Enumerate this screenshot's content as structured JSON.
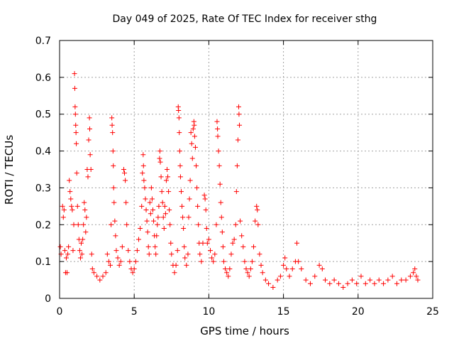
{
  "chart_data": {
    "type": "scatter",
    "title": "Day 049 of 2025, Rate Of TEC Index for receiver sthg",
    "xlabel": "GPS time / hours",
    "ylabel": "ROTI / TECUs",
    "xlim": [
      0,
      25
    ],
    "ylim": [
      0,
      0.7
    ],
    "x_ticks": [
      0,
      5,
      10,
      15,
      20,
      25
    ],
    "y_ticks": [
      0,
      0.1,
      0.2,
      0.3,
      0.4,
      0.5,
      0.6,
      0.7
    ],
    "x_tick_labels": [
      "0",
      "5",
      "10",
      "15",
      "20",
      "25"
    ],
    "y_tick_labels": [
      "0",
      "0.1",
      "0.2",
      "0.3",
      "0.4",
      "0.5",
      "0.6",
      "0.7"
    ],
    "grid": true,
    "marker": "+",
    "series": [
      {
        "name": "ROTI",
        "color": "#ff0000",
        "points": [
          [
            0.05,
            0.14
          ],
          [
            0.1,
            0.12
          ],
          [
            0.2,
            0.25
          ],
          [
            0.25,
            0.22
          ],
          [
            0.3,
            0.24
          ],
          [
            0.35,
            0.13
          ],
          [
            0.4,
            0.07
          ],
          [
            0.45,
            0.11
          ],
          [
            0.5,
            0.07
          ],
          [
            0.55,
            0.12
          ],
          [
            0.6,
            0.14
          ],
          [
            0.65,
            0.32
          ],
          [
            0.7,
            0.29
          ],
          [
            0.75,
            0.27
          ],
          [
            0.8,
            0.25
          ],
          [
            0.85,
            0.24
          ],
          [
            0.9,
            0.13
          ],
          [
            0.95,
            0.2
          ],
          [
            1.0,
            0.61
          ],
          [
            1.02,
            0.57
          ],
          [
            1.04,
            0.52
          ],
          [
            1.06,
            0.5
          ],
          [
            1.08,
            0.47
          ],
          [
            1.1,
            0.45
          ],
          [
            1.12,
            0.42
          ],
          [
            1.15,
            0.34
          ],
          [
            1.2,
            0.25
          ],
          [
            1.25,
            0.2
          ],
          [
            1.3,
            0.16
          ],
          [
            1.35,
            0.13
          ],
          [
            1.4,
            0.11
          ],
          [
            1.45,
            0.15
          ],
          [
            1.5,
            0.12
          ],
          [
            1.55,
            0.16
          ],
          [
            1.6,
            0.2
          ],
          [
            1.65,
            0.26
          ],
          [
            1.7,
            0.24
          ],
          [
            1.75,
            0.18
          ],
          [
            1.8,
            0.22
          ],
          [
            1.85,
            0.35
          ],
          [
            1.9,
            0.33
          ],
          [
            1.95,
            0.43
          ],
          [
            2.0,
            0.49
          ],
          [
            2.02,
            0.46
          ],
          [
            2.05,
            0.39
          ],
          [
            2.1,
            0.35
          ],
          [
            2.15,
            0.12
          ],
          [
            2.2,
            0.08
          ],
          [
            2.3,
            0.07
          ],
          [
            2.5,
            0.06
          ],
          [
            2.7,
            0.05
          ],
          [
            2.9,
            0.06
          ],
          [
            3.1,
            0.07
          ],
          [
            3.2,
            0.12
          ],
          [
            3.3,
            0.1
          ],
          [
            3.4,
            0.09
          ],
          [
            3.45,
            0.2
          ],
          [
            3.5,
            0.49
          ],
          [
            3.52,
            0.47
          ],
          [
            3.55,
            0.45
          ],
          [
            3.58,
            0.4
          ],
          [
            3.6,
            0.36
          ],
          [
            3.62,
            0.3
          ],
          [
            3.65,
            0.26
          ],
          [
            3.7,
            0.21
          ],
          [
            3.75,
            0.17
          ],
          [
            3.8,
            0.13
          ],
          [
            3.9,
            0.11
          ],
          [
            4.0,
            0.09
          ],
          [
            4.1,
            0.1
          ],
          [
            4.2,
            0.14
          ],
          [
            4.3,
            0.35
          ],
          [
            4.35,
            0.34
          ],
          [
            4.4,
            0.32
          ],
          [
            4.45,
            0.26
          ],
          [
            4.5,
            0.2
          ],
          [
            4.6,
            0.13
          ],
          [
            4.7,
            0.1
          ],
          [
            4.8,
            0.08
          ],
          [
            4.9,
            0.07
          ],
          [
            5.0,
            0.08
          ],
          [
            5.1,
            0.1
          ],
          [
            5.2,
            0.13
          ],
          [
            5.3,
            0.16
          ],
          [
            5.4,
            0.19
          ],
          [
            5.5,
            0.25
          ],
          [
            5.55,
            0.34
          ],
          [
            5.6,
            0.39
          ],
          [
            5.62,
            0.36
          ],
          [
            5.65,
            0.32
          ],
          [
            5.7,
            0.3
          ],
          [
            5.75,
            0.27
          ],
          [
            5.8,
            0.24
          ],
          [
            5.85,
            0.21
          ],
          [
            5.9,
            0.18
          ],
          [
            5.95,
            0.14
          ],
          [
            6.0,
            0.12
          ],
          [
            6.05,
            0.26
          ],
          [
            6.1,
            0.23
          ],
          [
            6.15,
            0.3
          ],
          [
            6.2,
            0.27
          ],
          [
            6.25,
            0.24
          ],
          [
            6.3,
            0.21
          ],
          [
            6.35,
            0.17
          ],
          [
            6.4,
            0.14
          ],
          [
            6.45,
            0.12
          ],
          [
            6.5,
            0.17
          ],
          [
            6.55,
            0.2
          ],
          [
            6.6,
            0.22
          ],
          [
            6.65,
            0.25
          ],
          [
            6.7,
            0.38
          ],
          [
            6.72,
            0.4
          ],
          [
            6.75,
            0.37
          ],
          [
            6.8,
            0.33
          ],
          [
            6.85,
            0.29
          ],
          [
            6.9,
            0.26
          ],
          [
            6.95,
            0.22
          ],
          [
            7.0,
            0.19
          ],
          [
            7.05,
            0.25
          ],
          [
            7.1,
            0.23
          ],
          [
            7.15,
            0.32
          ],
          [
            7.2,
            0.35
          ],
          [
            7.25,
            0.33
          ],
          [
            7.3,
            0.29
          ],
          [
            7.35,
            0.24
          ],
          [
            7.4,
            0.2
          ],
          [
            7.45,
            0.15
          ],
          [
            7.5,
            0.12
          ],
          [
            7.6,
            0.09
          ],
          [
            7.7,
            0.07
          ],
          [
            7.8,
            0.09
          ],
          [
            7.9,
            0.13
          ],
          [
            7.95,
            0.52
          ],
          [
            7.97,
            0.51
          ],
          [
            8.0,
            0.49
          ],
          [
            8.02,
            0.45
          ],
          [
            8.05,
            0.4
          ],
          [
            8.08,
            0.36
          ],
          [
            8.1,
            0.33
          ],
          [
            8.15,
            0.29
          ],
          [
            8.2,
            0.25
          ],
          [
            8.25,
            0.22
          ],
          [
            8.3,
            0.19
          ],
          [
            8.35,
            0.14
          ],
          [
            8.4,
            0.11
          ],
          [
            8.5,
            0.09
          ],
          [
            8.6,
            0.12
          ],
          [
            8.65,
            0.22
          ],
          [
            8.7,
            0.27
          ],
          [
            8.75,
            0.32
          ],
          [
            8.8,
            0.45
          ],
          [
            8.85,
            0.42
          ],
          [
            8.9,
            0.38
          ],
          [
            8.95,
            0.46
          ],
          [
            9.0,
            0.48
          ],
          [
            9.02,
            0.47
          ],
          [
            9.05,
            0.44
          ],
          [
            9.1,
            0.41
          ],
          [
            9.15,
            0.36
          ],
          [
            9.2,
            0.3
          ],
          [
            9.25,
            0.25
          ],
          [
            9.3,
            0.2
          ],
          [
            9.35,
            0.15
          ],
          [
            9.4,
            0.12
          ],
          [
            9.5,
            0.1
          ],
          [
            9.6,
            0.15
          ],
          [
            9.7,
            0.28
          ],
          [
            9.75,
            0.27
          ],
          [
            9.8,
            0.24
          ],
          [
            9.85,
            0.19
          ],
          [
            9.9,
            0.15
          ],
          [
            10.0,
            0.16
          ],
          [
            10.1,
            0.13
          ],
          [
            10.2,
            0.11
          ],
          [
            10.3,
            0.1
          ],
          [
            10.4,
            0.12
          ],
          [
            10.5,
            0.2
          ],
          [
            10.55,
            0.48
          ],
          [
            10.58,
            0.46
          ],
          [
            10.6,
            0.44
          ],
          [
            10.65,
            0.4
          ],
          [
            10.7,
            0.36
          ],
          [
            10.75,
            0.31
          ],
          [
            10.8,
            0.26
          ],
          [
            10.85,
            0.22
          ],
          [
            10.9,
            0.18
          ],
          [
            10.95,
            0.14
          ],
          [
            11.0,
            0.1
          ],
          [
            11.1,
            0.08
          ],
          [
            11.2,
            0.07
          ],
          [
            11.3,
            0.06
          ],
          [
            11.4,
            0.08
          ],
          [
            11.5,
            0.12
          ],
          [
            11.6,
            0.15
          ],
          [
            11.7,
            0.16
          ],
          [
            11.8,
            0.2
          ],
          [
            11.85,
            0.29
          ],
          [
            11.9,
            0.36
          ],
          [
            11.95,
            0.43
          ],
          [
            12.0,
            0.52
          ],
          [
            12.02,
            0.5
          ],
          [
            12.05,
            0.47
          ],
          [
            12.1,
            0.21
          ],
          [
            12.2,
            0.17
          ],
          [
            12.3,
            0.14
          ],
          [
            12.4,
            0.1
          ],
          [
            12.5,
            0.08
          ],
          [
            12.6,
            0.07
          ],
          [
            12.7,
            0.06
          ],
          [
            12.8,
            0.08
          ],
          [
            12.9,
            0.1
          ],
          [
            13.0,
            0.14
          ],
          [
            13.1,
            0.21
          ],
          [
            13.2,
            0.25
          ],
          [
            13.25,
            0.24
          ],
          [
            13.3,
            0.2
          ],
          [
            13.4,
            0.12
          ],
          [
            13.5,
            0.09
          ],
          [
            13.6,
            0.07
          ],
          [
            13.8,
            0.05
          ],
          [
            14.0,
            0.04
          ],
          [
            14.3,
            0.03
          ],
          [
            14.6,
            0.05
          ],
          [
            14.8,
            0.06
          ],
          [
            15.0,
            0.09
          ],
          [
            15.1,
            0.11
          ],
          [
            15.2,
            0.08
          ],
          [
            15.4,
            0.06
          ],
          [
            15.6,
            0.08
          ],
          [
            15.8,
            0.1
          ],
          [
            15.9,
            0.15
          ],
          [
            16.0,
            0.1
          ],
          [
            16.2,
            0.08
          ],
          [
            16.5,
            0.05
          ],
          [
            16.8,
            0.04
          ],
          [
            17.1,
            0.06
          ],
          [
            17.4,
            0.09
          ],
          [
            17.6,
            0.08
          ],
          [
            17.8,
            0.05
          ],
          [
            18.1,
            0.04
          ],
          [
            18.4,
            0.05
          ],
          [
            18.7,
            0.04
          ],
          [
            19.0,
            0.03
          ],
          [
            19.3,
            0.04
          ],
          [
            19.6,
            0.05
          ],
          [
            19.9,
            0.04
          ],
          [
            20.2,
            0.06
          ],
          [
            20.5,
            0.04
          ],
          [
            20.8,
            0.05
          ],
          [
            21.1,
            0.04
          ],
          [
            21.4,
            0.05
          ],
          [
            21.7,
            0.04
          ],
          [
            22.0,
            0.05
          ],
          [
            22.3,
            0.06
          ],
          [
            22.6,
            0.04
          ],
          [
            22.9,
            0.05
          ],
          [
            23.2,
            0.05
          ],
          [
            23.5,
            0.06
          ],
          [
            23.7,
            0.07
          ],
          [
            23.8,
            0.08
          ],
          [
            23.9,
            0.06
          ],
          [
            24.0,
            0.05
          ]
        ]
      }
    ]
  }
}
